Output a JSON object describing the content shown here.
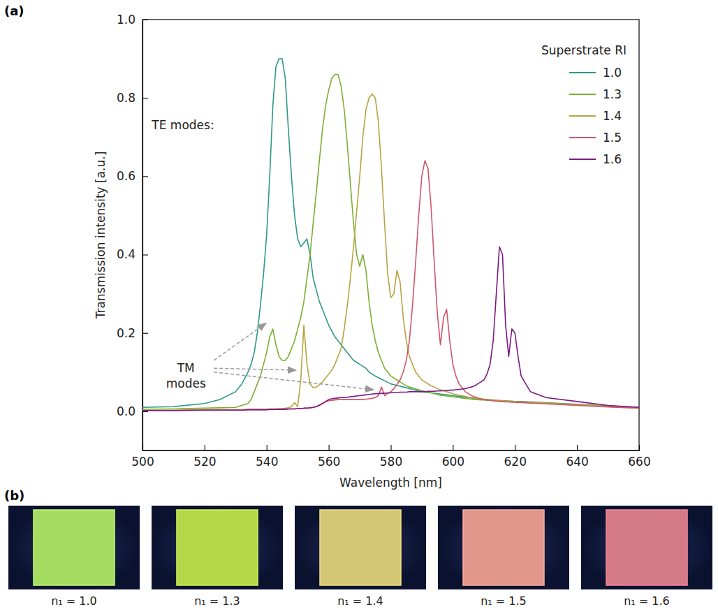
{
  "chart_data": {
    "type": "line",
    "panel_label": "(a)",
    "x_label": "Wavelength [nm]",
    "y_label": "Transmission intensity [a.u.]",
    "legend_title": "Superstrate RI",
    "legend": "upper right",
    "xlim": [
      500,
      660
    ],
    "xticks": [
      500,
      520,
      540,
      560,
      580,
      600,
      620,
      640,
      660
    ],
    "ylim": [
      -0.1,
      1.0
    ],
    "yticks": [
      {
        "value": 0,
        "label": "0.0"
      },
      {
        "value": 0.2,
        "label": "0.2"
      },
      {
        "value": 0.4,
        "label": "0.4"
      },
      {
        "value": 0.6,
        "label": "0.6"
      },
      {
        "value": 0.8,
        "label": "0.8"
      },
      {
        "value": 1.0,
        "label": "1.0"
      }
    ],
    "annotations": [
      {
        "text": "TE modes:",
        "x": 503,
        "y": 0.72
      },
      {
        "text": "TM modes",
        "x": 514,
        "y": 0.1,
        "arrows": [
          {
            "x0": 523,
            "y0": 0.13,
            "x": 539.8,
            "y": 0.225
          },
          {
            "x0": 523,
            "y0": 0.11,
            "x": 549.5,
            "y": 0.105
          },
          {
            "x0": 523,
            "y0": 0.1,
            "x": 574.5,
            "y": 0.055
          }
        ]
      }
    ],
    "x": [
      500,
      510,
      520,
      525,
      530,
      532,
      534,
      535,
      536,
      537,
      538,
      539,
      540,
      541,
      542,
      543,
      544,
      545,
      546,
      547,
      548,
      549,
      550,
      551,
      552,
      553,
      554,
      555,
      556,
      557,
      558,
      559,
      560,
      561,
      562,
      563,
      564,
      565,
      566,
      567,
      568,
      569,
      570,
      571,
      572,
      573,
      574,
      575,
      576,
      577,
      578,
      579,
      580,
      581,
      582,
      583,
      584,
      585,
      586,
      587,
      588,
      589,
      590,
      591,
      592,
      593,
      594,
      595,
      596,
      597,
      598,
      599,
      600,
      601,
      602,
      603,
      604,
      605,
      606,
      607,
      608,
      609,
      610,
      611,
      612,
      613,
      614,
      615,
      616,
      617,
      618,
      619,
      620,
      621,
      622,
      625,
      630,
      640,
      650,
      660
    ],
    "series": [
      {
        "name": "1.0",
        "color": "#2e9a82",
        "values": [
          0.01,
          0.012,
          0.02,
          0.03,
          0.05,
          0.07,
          0.1,
          0.12,
          0.15,
          0.2,
          0.27,
          0.35,
          0.45,
          0.6,
          0.78,
          0.88,
          0.9,
          0.9,
          0.85,
          0.72,
          0.6,
          0.5,
          0.44,
          0.42,
          0.43,
          0.44,
          0.4,
          0.34,
          0.31,
          0.28,
          0.26,
          0.24,
          0.22,
          0.205,
          0.19,
          0.18,
          0.17,
          0.16,
          0.15,
          0.14,
          0.13,
          0.125,
          0.12,
          0.115,
          0.11,
          0.1,
          0.095,
          0.09,
          0.086,
          0.082,
          0.078,
          0.074,
          0.07,
          0.068,
          0.066,
          0.064,
          0.062,
          0.06,
          0.058,
          0.056,
          0.054,
          0.052,
          0.05,
          0.049,
          0.048,
          0.047,
          0.046,
          0.045,
          0.044,
          0.043,
          0.042,
          0.041,
          0.04,
          0.039,
          0.038,
          0.037,
          0.036,
          0.035,
          0.034,
          0.033,
          0.032,
          0.031,
          0.03,
          0.03,
          0.029,
          0.029,
          0.028,
          0.028,
          0.027,
          0.027,
          0.026,
          0.026,
          0.025,
          0.025,
          0.025,
          0.024,
          0.022,
          0.018,
          0.014,
          0.01
        ]
      },
      {
        "name": "1.3",
        "color": "#7cae32",
        "values": [
          0.005,
          0.006,
          0.008,
          0.009,
          0.01,
          0.015,
          0.02,
          0.03,
          0.05,
          0.07,
          0.09,
          0.12,
          0.15,
          0.19,
          0.21,
          0.17,
          0.14,
          0.13,
          0.13,
          0.14,
          0.16,
          0.18,
          0.21,
          0.24,
          0.28,
          0.34,
          0.4,
          0.48,
          0.56,
          0.64,
          0.72,
          0.78,
          0.82,
          0.85,
          0.86,
          0.86,
          0.83,
          0.77,
          0.68,
          0.58,
          0.48,
          0.4,
          0.37,
          0.4,
          0.36,
          0.28,
          0.22,
          0.18,
          0.15,
          0.13,
          0.11,
          0.1,
          0.09,
          0.085,
          0.08,
          0.075,
          0.07,
          0.065,
          0.062,
          0.06,
          0.057,
          0.055,
          0.053,
          0.051,
          0.049,
          0.047,
          0.045,
          0.043,
          0.041,
          0.04,
          0.039,
          0.038,
          0.037,
          0.036,
          0.035,
          0.034,
          0.033,
          0.032,
          0.031,
          0.03,
          0.03,
          0.029,
          0.029,
          0.028,
          0.028,
          0.027,
          0.027,
          0.026,
          0.026,
          0.025,
          0.025,
          0.024,
          0.024,
          0.023,
          0.023,
          0.022,
          0.02,
          0.016,
          0.012,
          0.008
        ]
      },
      {
        "name": "1.4",
        "color": "#b8a440",
        "values": [
          0.003,
          0.003,
          0.004,
          0.004,
          0.004,
          0.004,
          0.005,
          0.005,
          0.005,
          0.005,
          0.005,
          0.005,
          0.005,
          0.006,
          0.006,
          0.006,
          0.007,
          0.007,
          0.008,
          0.009,
          0.012,
          0.022,
          0.012,
          0.08,
          0.22,
          0.12,
          0.07,
          0.06,
          0.062,
          0.068,
          0.075,
          0.085,
          0.095,
          0.105,
          0.12,
          0.14,
          0.16,
          0.21,
          0.27,
          0.34,
          0.42,
          0.51,
          0.6,
          0.7,
          0.77,
          0.8,
          0.81,
          0.8,
          0.74,
          0.62,
          0.48,
          0.35,
          0.29,
          0.3,
          0.36,
          0.33,
          0.24,
          0.18,
          0.14,
          0.12,
          0.1,
          0.09,
          0.08,
          0.075,
          0.07,
          0.065,
          0.062,
          0.058,
          0.055,
          0.052,
          0.05,
          0.048,
          0.045,
          0.043,
          0.041,
          0.04,
          0.038,
          0.036,
          0.035,
          0.034,
          0.033,
          0.032,
          0.031,
          0.03,
          0.029,
          0.029,
          0.028,
          0.027,
          0.027,
          0.026,
          0.026,
          0.025,
          0.025,
          0.024,
          0.024,
          0.023,
          0.021,
          0.017,
          0.013,
          0.009
        ]
      },
      {
        "name": "1.5",
        "color": "#d0566a",
        "values": [
          0.002,
          0.002,
          0.003,
          0.003,
          0.003,
          0.003,
          0.004,
          0.004,
          0.004,
          0.004,
          0.004,
          0.004,
          0.004,
          0.005,
          0.005,
          0.005,
          0.005,
          0.005,
          0.005,
          0.006,
          0.006,
          0.006,
          0.007,
          0.007,
          0.008,
          0.008,
          0.009,
          0.01,
          0.012,
          0.015,
          0.02,
          0.024,
          0.027,
          0.028,
          0.029,
          0.03,
          0.03,
          0.03,
          0.03,
          0.03,
          0.03,
          0.03,
          0.03,
          0.03,
          0.031,
          0.032,
          0.033,
          0.035,
          0.04,
          0.062,
          0.04,
          0.045,
          0.05,
          0.058,
          0.068,
          0.08,
          0.1,
          0.13,
          0.18,
          0.27,
          0.38,
          0.5,
          0.6,
          0.64,
          0.62,
          0.52,
          0.38,
          0.25,
          0.17,
          0.24,
          0.26,
          0.18,
          0.12,
          0.09,
          0.07,
          0.06,
          0.05,
          0.045,
          0.04,
          0.037,
          0.034,
          0.032,
          0.03,
          0.029,
          0.028,
          0.027,
          0.026,
          0.025,
          0.025,
          0.024,
          0.024,
          0.023,
          0.023,
          0.022,
          0.022,
          0.021,
          0.019,
          0.015,
          0.011,
          0.008
        ]
      },
      {
        "name": "1.6",
        "color": "#7a1a82",
        "values": [
          0.002,
          0.002,
          0.003,
          0.003,
          0.003,
          0.003,
          0.004,
          0.004,
          0.004,
          0.004,
          0.004,
          0.004,
          0.004,
          0.005,
          0.005,
          0.005,
          0.005,
          0.005,
          0.005,
          0.006,
          0.006,
          0.006,
          0.007,
          0.007,
          0.008,
          0.008,
          0.009,
          0.01,
          0.012,
          0.016,
          0.02,
          0.025,
          0.03,
          0.032,
          0.033,
          0.034,
          0.035,
          0.035,
          0.036,
          0.037,
          0.038,
          0.039,
          0.04,
          0.041,
          0.042,
          0.043,
          0.044,
          0.045,
          0.045,
          0.046,
          0.046,
          0.047,
          0.047,
          0.048,
          0.048,
          0.049,
          0.049,
          0.049,
          0.05,
          0.05,
          0.05,
          0.05,
          0.05,
          0.05,
          0.051,
          0.051,
          0.051,
          0.052,
          0.052,
          0.053,
          0.053,
          0.054,
          0.054,
          0.055,
          0.056,
          0.057,
          0.058,
          0.06,
          0.062,
          0.065,
          0.07,
          0.075,
          0.08,
          0.095,
          0.12,
          0.18,
          0.3,
          0.42,
          0.4,
          0.22,
          0.14,
          0.21,
          0.2,
          0.14,
          0.09,
          0.05,
          0.035,
          0.025,
          0.015,
          0.01
        ]
      }
    ]
  },
  "photos": {
    "panel_label": "(b)",
    "items": [
      {
        "caption": "n₁ = 1.0",
        "color": "#a6dc62"
      },
      {
        "caption": "n₁ = 1.3",
        "color": "#b4d84a"
      },
      {
        "caption": "n₁ = 1.4",
        "color": "#d2c574"
      },
      {
        "caption": "n₁ = 1.5",
        "color": "#e0968a"
      },
      {
        "caption": "n₁ = 1.6",
        "color": "#d47a86"
      }
    ]
  }
}
